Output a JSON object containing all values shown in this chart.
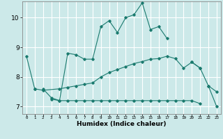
{
  "xlabel": "Humidex (Indice chaleur)",
  "background_color": "#cce9e9",
  "grid_color": "#ffffff",
  "line_color": "#1a7a6e",
  "xlim": [
    -0.5,
    23.5
  ],
  "ylim": [
    6.75,
    10.55
  ],
  "yticks": [
    7,
    8,
    9,
    10
  ],
  "xticks": [
    0,
    1,
    2,
    3,
    4,
    5,
    6,
    7,
    8,
    9,
    10,
    11,
    12,
    13,
    14,
    15,
    16,
    17,
    18,
    19,
    20,
    21,
    22,
    23
  ],
  "series": [
    {
      "x": [
        0,
        1
      ],
      "y": [
        8.7,
        7.6
      ]
    },
    {
      "x": [
        2,
        3,
        4,
        5,
        6,
        7,
        8,
        9,
        10,
        11,
        12,
        13,
        14,
        15,
        16,
        17
      ],
      "y": [
        7.6,
        7.3,
        7.2,
        8.8,
        8.75,
        8.6,
        8.6,
        9.7,
        9.9,
        9.5,
        10.0,
        10.1,
        10.5,
        9.6,
        9.7,
        9.3
      ]
    },
    {
      "x": [
        1,
        2,
        4,
        5,
        6,
        7,
        8,
        9,
        10,
        11,
        12,
        13,
        14,
        15,
        16,
        17,
        18,
        19,
        20,
        21
      ],
      "y": [
        7.6,
        7.55,
        7.6,
        7.65,
        7.7,
        7.75,
        7.8,
        8.0,
        8.15,
        8.25,
        8.35,
        8.45,
        8.52,
        8.6,
        8.62,
        8.7,
        8.62,
        8.3,
        8.5,
        8.3
      ]
    },
    {
      "x": [
        3,
        4,
        5,
        6,
        7,
        8,
        9,
        10,
        11,
        12,
        13,
        14,
        15,
        16,
        17,
        18,
        19,
        20,
        21
      ],
      "y": [
        7.25,
        7.2,
        7.2,
        7.2,
        7.2,
        7.2,
        7.2,
        7.2,
        7.2,
        7.2,
        7.2,
        7.2,
        7.2,
        7.2,
        7.2,
        7.2,
        7.2,
        7.2,
        7.1
      ]
    },
    {
      "x": [
        20,
        21,
        22,
        23
      ],
      "y": [
        8.5,
        8.3,
        7.7,
        7.5
      ]
    },
    {
      "x": [
        22,
        23
      ],
      "y": [
        7.7,
        7.0
      ]
    }
  ]
}
